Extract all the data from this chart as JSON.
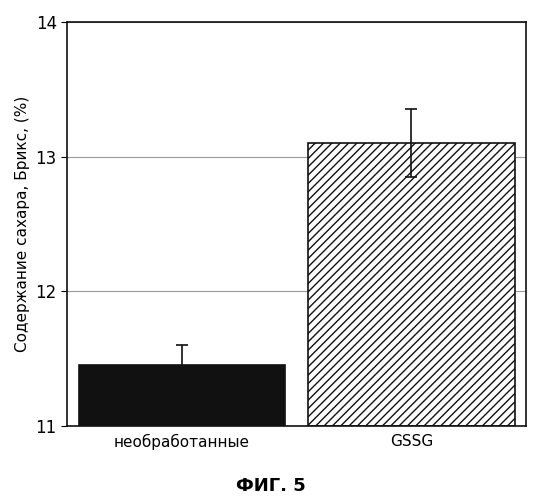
{
  "categories": [
    "необработанные",
    "GSSG"
  ],
  "values": [
    11.45,
    13.1
  ],
  "errors": [
    0.15,
    0.25
  ],
  "bar_colors": [
    "#111111",
    "#ffffff"
  ],
  "bar_hatches": [
    "",
    "////"
  ],
  "ylabel": "Содержание сахара, Брикс, (%)",
  "caption": "ФИГ. 5",
  "ylim": [
    11,
    14
  ],
  "yticks": [
    11,
    12,
    13,
    14
  ],
  "background_color": "#ffffff",
  "bar_width": 0.45,
  "bar_edge_color": "#111111",
  "error_cap_size": 4,
  "error_color": "#111111",
  "grid_color": "#999999",
  "ylabel_fontsize": 11,
  "tick_fontsize": 12,
  "caption_fontsize": 13,
  "xtick_fontsize": 11,
  "x_positions": [
    0.25,
    0.75
  ]
}
